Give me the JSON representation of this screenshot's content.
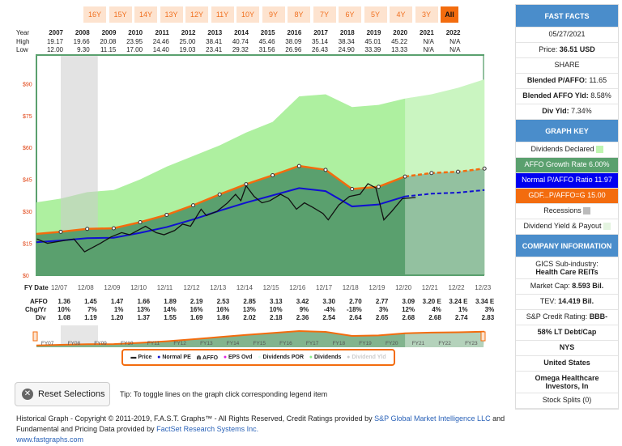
{
  "range_buttons": [
    "16Y",
    "15Y",
    "14Y",
    "13Y",
    "12Y",
    "11Y",
    "10Y",
    "9Y",
    "8Y",
    "7Y",
    "6Y",
    "5Y",
    "4Y",
    "3Y",
    "All"
  ],
  "active_range": "All",
  "year_table": {
    "labels": {
      "year": "Year",
      "high": "High",
      "low": "Low"
    },
    "years": [
      "2007",
      "2008",
      "2009",
      "2010",
      "2011",
      "2012",
      "2013",
      "2014",
      "2015",
      "2016",
      "2017",
      "2018",
      "2019",
      "2020",
      "2021",
      "2022"
    ],
    "high": [
      "19.17",
      "19.66",
      "20.08",
      "23.95",
      "24.46",
      "25.00",
      "38.41",
      "40.74",
      "45.46",
      "38.09",
      "35.14",
      "38.34",
      "45.01",
      "45.22",
      "N/A",
      "N/A"
    ],
    "low": [
      "12.00",
      "9.30",
      "11.15",
      "17.00",
      "14.40",
      "19.03",
      "23.41",
      "29.32",
      "31.56",
      "26.96",
      "26.43",
      "24.90",
      "33.39",
      "13.33",
      "N/A",
      "N/A"
    ]
  },
  "y_ticks": [
    "$90",
    "$75",
    "$60",
    "$45",
    "$30",
    "$15",
    "$0"
  ],
  "fy_table": {
    "labels": {
      "fy": "FY Date",
      "affo": "AFFO",
      "chg": "Chg/Yr",
      "div": "Div"
    },
    "dates": [
      "12/07",
      "12/08",
      "12/09",
      "12/10",
      "12/11",
      "12/12",
      "12/13",
      "12/14",
      "12/15",
      "12/16",
      "12/17",
      "12/18",
      "12/19",
      "12/20",
      "12/21",
      "12/22",
      "12/23"
    ],
    "affo": [
      "1.36",
      "1.45",
      "1.47",
      "1.66",
      "1.89",
      "2.19",
      "2.53",
      "2.85",
      "3.13",
      "3.42",
      "3.30",
      "2.70",
      "2.77",
      "3.09",
      "3.20 E",
      "3.24 E",
      "3.34 E"
    ],
    "chg": [
      "10%",
      "7%",
      "1%",
      "13%",
      "14%",
      "16%",
      "16%",
      "13%",
      "10%",
      "9%",
      "-4%",
      "-18%",
      "3%",
      "12%",
      "4%",
      "1%",
      "3%"
    ],
    "div": [
      "1.08",
      "1.19",
      "1.20",
      "1.37",
      "1.55",
      "1.69",
      "1.86",
      "2.02",
      "2.18",
      "2.36",
      "2.54",
      "2.64",
      "2.65",
      "2.68",
      "2.68",
      "2.74",
      "2.83"
    ]
  },
  "navigator_labels": [
    "FY07",
    "FY08",
    "FY09",
    "FY10",
    "FY11",
    "FY12",
    "FY13",
    "FY14",
    "FY15",
    "FY16",
    "FY17",
    "FY18",
    "FY19",
    "FY20",
    "FY21",
    "FY22",
    "FY23"
  ],
  "chart_data": {
    "type": "area",
    "ylim": [
      0,
      100
    ],
    "y_ticks": [
      90,
      75,
      60,
      45,
      30,
      15,
      0
    ],
    "x_years": [
      2008,
      2009,
      2010,
      2011,
      2012,
      2013,
      2014,
      2015,
      2016,
      2017,
      2018,
      2019,
      2020,
      2021,
      2022,
      2023,
      2024
    ],
    "gdf_affo_15": [
      20.4,
      21.75,
      22.05,
      24.9,
      28.35,
      32.85,
      37.95,
      42.75,
      46.95,
      51.3,
      49.5,
      40.5,
      41.55,
      46.35,
      48,
      48.6,
      50.1
    ],
    "normal_pe_11_97": [
      16.3,
      17.4,
      17.6,
      19.9,
      22.6,
      26.2,
      30.3,
      34.1,
      37.5,
      40.9,
      39.5,
      32.3,
      33.2,
      37,
      38.3,
      38.8,
      40
    ],
    "dividends_band": [
      36,
      39,
      40,
      45,
      51,
      56,
      61,
      67,
      72,
      84,
      85,
      79,
      80,
      83,
      85,
      88,
      92
    ],
    "price": [
      [
        2007.1,
        17
      ],
      [
        2007.5,
        15
      ],
      [
        2008.0,
        16
      ],
      [
        2008.5,
        17
      ],
      [
        2008.9,
        11
      ],
      [
        2009.2,
        13
      ],
      [
        2009.5,
        15
      ],
      [
        2009.9,
        18
      ],
      [
        2010.3,
        20
      ],
      [
        2010.6,
        19
      ],
      [
        2010.9,
        21
      ],
      [
        2011.2,
        23
      ],
      [
        2011.6,
        20
      ],
      [
        2011.9,
        19
      ],
      [
        2012.3,
        21
      ],
      [
        2012.6,
        24
      ],
      [
        2012.9,
        23
      ],
      [
        2013.3,
        31
      ],
      [
        2013.5,
        28
      ],
      [
        2013.9,
        30
      ],
      [
        2014.3,
        34
      ],
      [
        2014.6,
        38
      ],
      [
        2014.8,
        35
      ],
      [
        2015.0,
        42
      ],
      [
        2015.3,
        37
      ],
      [
        2015.6,
        34
      ],
      [
        2015.9,
        35
      ],
      [
        2016.3,
        38
      ],
      [
        2016.6,
        36
      ],
      [
        2016.9,
        31
      ],
      [
        2017.2,
        34
      ],
      [
        2017.5,
        32
      ],
      [
        2017.9,
        29
      ],
      [
        2018.1,
        26
      ],
      [
        2018.5,
        33
      ],
      [
        2018.9,
        37
      ],
      [
        2019.3,
        38
      ],
      [
        2019.6,
        43
      ],
      [
        2019.9,
        41
      ],
      [
        2020.2,
        26
      ],
      [
        2020.5,
        30
      ],
      [
        2020.9,
        36
      ],
      [
        2021.4,
        36.5
      ]
    ],
    "recession": [
      2008.0,
      2009.4
    ],
    "colors": {
      "gdf": "#f36c0e",
      "normal": "#1010d0",
      "affo_area": "#5aa06e",
      "dividends": "#aef0a0",
      "price": "#111111",
      "recession": "#cccccc"
    }
  },
  "legend": [
    "Price",
    "Normal PE",
    "AFFO",
    "EPS Ovd",
    "Dividends POR",
    "Dividends",
    "Dividend Yld"
  ],
  "fast_facts": {
    "title": "FAST FACTS",
    "date": "05/27/2021",
    "price_label": "Price:",
    "price": "36.51 USD",
    "share": "SHARE",
    "blended_pe_label": "Blended P/AFFO:",
    "blended_pe": "11.65",
    "blended_yld_label": "Blended AFFO Yld:",
    "blended_yld": "8.58%",
    "div_yld_label": "Div Yld:",
    "div_yld": "7.34%"
  },
  "graph_key": {
    "title": "GRAPH KEY",
    "dividends": "Dividends Declared",
    "affo_growth": "AFFO Growth Rate 6.00%",
    "normal_ratio": "Normal P/AFFO Ratio 11.97",
    "gdf": "GDF...P/AFFO=G 15.00",
    "recessions": "Recessions",
    "div_yield": "Dividend Yield & Payout"
  },
  "company": {
    "title": "COMPANY INFORMATION",
    "gics_label": "GICS Sub-industry:",
    "gics": "Health Care REITs",
    "mcap_label": "Market Cap:",
    "mcap": "8.593 Bil.",
    "tev_label": "TEV:",
    "tev": "14.419 Bil.",
    "rating_label": "S&P Credit Rating:",
    "rating": "BBB-",
    "debt": "58% LT Debt/Cap",
    "exchange": "NYS",
    "country": "United States",
    "name": "Omega Healthcare Investors, In",
    "splits": "Stock Splits (0)"
  },
  "reset_label": "Reset Selections",
  "tip": "Tip: To toggle lines on the graph click corresponding legend item",
  "footer": {
    "line1a": "Historical Graph - Copyright © 2011-2019, F.A.S.T. Graphs™ - All Rights Reserved, Credit Ratings provided by ",
    "sp": "S&P Global Market Intelligence LLC",
    "line1b": " and",
    "line2a": "Fundamental and Pricing Data provided by ",
    "factset": "FactSet Research Systems Inc.",
    "url": "www.fastgraphs.com"
  }
}
